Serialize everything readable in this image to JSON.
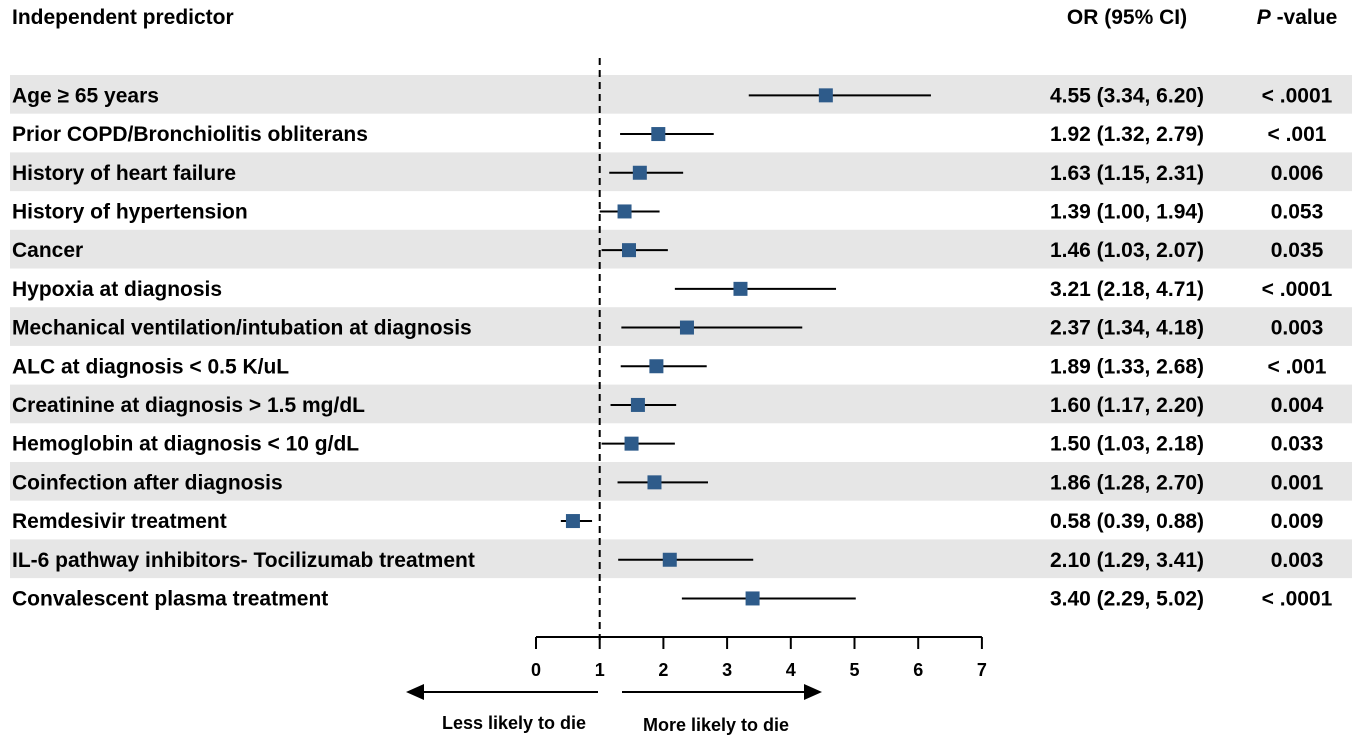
{
  "header": {
    "predictor": "Independent predictor",
    "or_ci": "OR (95% CI)",
    "p_letter": "P",
    "p_rest": " -value"
  },
  "direction": {
    "left": "Less likely to die",
    "right": "More likely to die"
  },
  "colors": {
    "marker": "#2E5B8A",
    "stripe": "#E6E6E6",
    "line": "#000000"
  },
  "chart_data": {
    "type": "forest",
    "xlim": [
      0,
      7
    ],
    "xticks": [
      "0",
      "1",
      "2",
      "3",
      "4",
      "5",
      "6",
      "7"
    ],
    "reference_line": 1,
    "rows": [
      {
        "label": "Age ≥ 65 years",
        "or": 4.55,
        "lo": 3.34,
        "hi": 6.2,
        "ci_text": "4.55 (3.34, 6.20)",
        "p": "< .0001"
      },
      {
        "label": "Prior COPD/Bronchiolitis obliterans",
        "or": 1.92,
        "lo": 1.32,
        "hi": 2.79,
        "ci_text": "1.92 (1.32, 2.79)",
        "p": "< .001"
      },
      {
        "label": "History of heart failure",
        "or": 1.63,
        "lo": 1.15,
        "hi": 2.31,
        "ci_text": "1.63 (1.15, 2.31)",
        "p": "0.006"
      },
      {
        "label": "History of hypertension",
        "or": 1.39,
        "lo": 1.0,
        "hi": 1.94,
        "ci_text": "1.39 (1.00, 1.94)",
        "p": "0.053"
      },
      {
        "label": "Cancer",
        "or": 1.46,
        "lo": 1.03,
        "hi": 2.07,
        "ci_text": "1.46 (1.03, 2.07)",
        "p": "0.035"
      },
      {
        "label": "Hypoxia at diagnosis",
        "or": 3.21,
        "lo": 2.18,
        "hi": 4.71,
        "ci_text": "3.21 (2.18, 4.71)",
        "p": "< .0001"
      },
      {
        "label": "Mechanical ventilation/intubation at diagnosis",
        "or": 2.37,
        "lo": 1.34,
        "hi": 4.18,
        "ci_text": "2.37 (1.34, 4.18)",
        "p": "0.003"
      },
      {
        "label": "ALC at diagnosis < 0.5 K/uL",
        "or": 1.89,
        "lo": 1.33,
        "hi": 2.68,
        "ci_text": "1.89 (1.33, 2.68)",
        "p": "< .001"
      },
      {
        "label": "Creatinine at diagnosis > 1.5 mg/dL",
        "or": 1.6,
        "lo": 1.17,
        "hi": 2.2,
        "ci_text": "1.60 (1.17, 2.20)",
        "p": "0.004"
      },
      {
        "label": "Hemoglobin at diagnosis < 10 g/dL",
        "or": 1.5,
        "lo": 1.03,
        "hi": 2.18,
        "ci_text": "1.50 (1.03, 2.18)",
        "p": "0.033"
      },
      {
        "label": "Coinfection after diagnosis",
        "or": 1.86,
        "lo": 1.28,
        "hi": 2.7,
        "ci_text": "1.86 (1.28, 2.70)",
        "p": "0.001"
      },
      {
        "label": "Remdesivir treatment",
        "or": 0.58,
        "lo": 0.39,
        "hi": 0.88,
        "ci_text": "0.58 (0.39, 0.88)",
        "p": "0.009"
      },
      {
        "label": "IL-6 pathway inhibitors- Tocilizumab treatment",
        "or": 2.1,
        "lo": 1.29,
        "hi": 3.41,
        "ci_text": "2.10 (1.29, 3.41)",
        "p": "0.003"
      },
      {
        "label": "Convalescent plasma treatment",
        "or": 3.4,
        "lo": 2.29,
        "hi": 5.02,
        "ci_text": "3.40 (2.29, 5.02)",
        "p": "< .0001"
      }
    ]
  }
}
